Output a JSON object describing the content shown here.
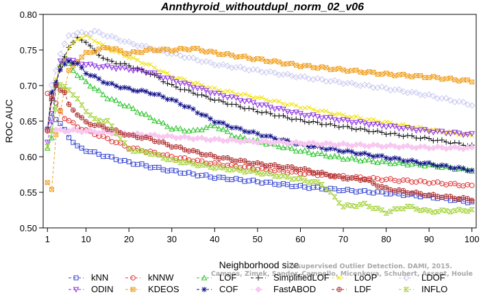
{
  "chart_data": {
    "type": "line",
    "title": "Annthyroid_withoutdupl_norm_02_v06",
    "xlabel": "Neighborhood size",
    "ylabel": "ROC AUC",
    "xlim": [
      0,
      101
    ],
    "ylim": [
      0.5,
      0.8
    ],
    "xticks": [
      1,
      10,
      20,
      30,
      40,
      50,
      60,
      70,
      80,
      90,
      100
    ],
    "yticks": [
      "0.50",
      "0.55",
      "0.60",
      "0.65",
      "0.70",
      "0.75",
      "0.80"
    ],
    "grid": false,
    "legend_position": "bottom",
    "watermark": [
      "Unsupervised Outlier Detection. DAMI, 2015.",
      "Campos, Zimek, Sander, Campello, Micenkova, Schubert, Assent, Houle"
    ],
    "series": [
      {
        "name": "kNN",
        "color": "#2f3fd0",
        "marker": "square",
        "knots": [
          [
            1,
            0.637
          ],
          [
            2,
            0.661
          ],
          [
            4,
            0.646
          ],
          [
            6,
            0.628
          ],
          [
            8,
            0.614
          ],
          [
            10,
            0.609
          ],
          [
            15,
            0.6
          ],
          [
            20,
            0.592
          ],
          [
            30,
            0.58
          ],
          [
            40,
            0.571
          ],
          [
            50,
            0.565
          ],
          [
            60,
            0.558
          ],
          [
            70,
            0.553
          ],
          [
            80,
            0.549
          ],
          [
            90,
            0.544
          ],
          [
            100,
            0.536
          ]
        ]
      },
      {
        "name": "kNNW",
        "color": "#e03030",
        "marker": "circle",
        "knots": [
          [
            1,
            0.69
          ],
          [
            2,
            0.686
          ],
          [
            3,
            0.674
          ],
          [
            5,
            0.655
          ],
          [
            8,
            0.642
          ],
          [
            10,
            0.637
          ],
          [
            15,
            0.625
          ],
          [
            20,
            0.613
          ],
          [
            30,
            0.6
          ],
          [
            40,
            0.59
          ],
          [
            50,
            0.583
          ],
          [
            60,
            0.577
          ],
          [
            70,
            0.572
          ],
          [
            80,
            0.568
          ],
          [
            90,
            0.564
          ],
          [
            100,
            0.559
          ]
        ]
      },
      {
        "name": "LOF",
        "color": "#28c428",
        "marker": "triangle-up",
        "knots": [
          [
            1,
            0.612
          ],
          [
            2,
            0.625
          ],
          [
            3,
            0.7
          ],
          [
            4,
            0.73
          ],
          [
            5,
            0.738
          ],
          [
            6,
            0.73
          ],
          [
            8,
            0.715
          ],
          [
            10,
            0.705
          ],
          [
            15,
            0.683
          ],
          [
            20,
            0.67
          ],
          [
            25,
            0.655
          ],
          [
            30,
            0.64
          ],
          [
            35,
            0.636
          ],
          [
            40,
            0.644
          ],
          [
            45,
            0.628
          ],
          [
            50,
            0.622
          ],
          [
            60,
            0.608
          ],
          [
            70,
            0.598
          ],
          [
            80,
            0.592
          ],
          [
            90,
            0.588
          ],
          [
            100,
            0.581
          ]
        ]
      },
      {
        "name": "SimplifiedLOF",
        "color": "#111111",
        "marker": "plus",
        "knots": [
          [
            1,
            0.638
          ],
          [
            2,
            0.68
          ],
          [
            4,
            0.725
          ],
          [
            6,
            0.755
          ],
          [
            8,
            0.766
          ],
          [
            10,
            0.762
          ],
          [
            12,
            0.748
          ],
          [
            15,
            0.735
          ],
          [
            20,
            0.728
          ],
          [
            25,
            0.717
          ],
          [
            30,
            0.7
          ],
          [
            40,
            0.68
          ],
          [
            50,
            0.664
          ],
          [
            60,
            0.651
          ],
          [
            70,
            0.642
          ],
          [
            80,
            0.633
          ],
          [
            90,
            0.625
          ],
          [
            100,
            0.615
          ]
        ]
      },
      {
        "name": "LoOP",
        "color": "#f0e000",
        "marker": "x",
        "knots": [
          [
            1,
            0.638
          ],
          [
            2,
            0.69
          ],
          [
            4,
            0.725
          ],
          [
            6,
            0.752
          ],
          [
            8,
            0.766
          ],
          [
            10,
            0.769
          ],
          [
            12,
            0.764
          ],
          [
            15,
            0.752
          ],
          [
            20,
            0.74
          ],
          [
            25,
            0.728
          ],
          [
            30,
            0.713
          ],
          [
            40,
            0.695
          ],
          [
            50,
            0.683
          ],
          [
            60,
            0.67
          ],
          [
            70,
            0.658
          ],
          [
            80,
            0.648
          ],
          [
            90,
            0.638
          ],
          [
            100,
            0.63
          ]
        ]
      },
      {
        "name": "LDOF",
        "color": "#c8c8f0",
        "marker": "diamond",
        "knots": [
          [
            1,
            0.64
          ],
          [
            2,
            0.7
          ],
          [
            4,
            0.745
          ],
          [
            6,
            0.77
          ],
          [
            8,
            0.774
          ],
          [
            10,
            0.773
          ],
          [
            12,
            0.776
          ],
          [
            15,
            0.77
          ],
          [
            20,
            0.76
          ],
          [
            30,
            0.745
          ],
          [
            40,
            0.73
          ],
          [
            50,
            0.721
          ],
          [
            60,
            0.712
          ],
          [
            70,
            0.704
          ],
          [
            80,
            0.696
          ],
          [
            90,
            0.686
          ],
          [
            100,
            0.673
          ]
        ]
      },
      {
        "name": "ODIN",
        "color": "#8a2be2",
        "marker": "triangle-down",
        "knots": [
          [
            1,
            0.62
          ],
          [
            2,
            0.65
          ],
          [
            3,
            0.7
          ],
          [
            4,
            0.733
          ],
          [
            6,
            0.737
          ],
          [
            8,
            0.732
          ],
          [
            10,
            0.73
          ],
          [
            12,
            0.727
          ],
          [
            15,
            0.726
          ],
          [
            20,
            0.723
          ],
          [
            25,
            0.718
          ],
          [
            30,
            0.708
          ],
          [
            40,
            0.689
          ],
          [
            50,
            0.674
          ],
          [
            60,
            0.66
          ],
          [
            70,
            0.651
          ],
          [
            80,
            0.643
          ],
          [
            90,
            0.636
          ],
          [
            100,
            0.631
          ]
        ]
      },
      {
        "name": "KDEOS",
        "color": "#f0a020",
        "marker": "square-x",
        "knots": [
          [
            1,
            0.565
          ],
          [
            2,
            0.553
          ],
          [
            3,
            0.63
          ],
          [
            4,
            0.665
          ],
          [
            5,
            0.695
          ],
          [
            6,
            0.72
          ],
          [
            8,
            0.735
          ],
          [
            10,
            0.745
          ],
          [
            15,
            0.754
          ],
          [
            20,
            0.745
          ],
          [
            25,
            0.75
          ],
          [
            30,
            0.75
          ],
          [
            35,
            0.752
          ],
          [
            40,
            0.746
          ],
          [
            50,
            0.737
          ],
          [
            60,
            0.728
          ],
          [
            70,
            0.722
          ],
          [
            80,
            0.716
          ],
          [
            90,
            0.712
          ],
          [
            100,
            0.706
          ]
        ]
      },
      {
        "name": "COF",
        "color": "#10108a",
        "marker": "asterisk",
        "knots": [
          [
            1,
            0.637
          ],
          [
            2,
            0.69
          ],
          [
            4,
            0.722
          ],
          [
            6,
            0.735
          ],
          [
            8,
            0.73
          ],
          [
            10,
            0.718
          ],
          [
            15,
            0.703
          ],
          [
            20,
            0.695
          ],
          [
            25,
            0.69
          ],
          [
            30,
            0.68
          ],
          [
            35,
            0.666
          ],
          [
            40,
            0.65
          ],
          [
            45,
            0.64
          ],
          [
            50,
            0.632
          ],
          [
            60,
            0.617
          ],
          [
            70,
            0.608
          ],
          [
            80,
            0.599
          ],
          [
            90,
            0.59
          ],
          [
            100,
            0.581
          ]
        ]
      },
      {
        "name": "FastABOD",
        "color": "#f8c8f0",
        "marker": "diamond-filled",
        "knots": [
          [
            1,
            0.637
          ],
          [
            5,
            0.637
          ],
          [
            10,
            0.636
          ],
          [
            15,
            0.634
          ],
          [
            20,
            0.632
          ],
          [
            30,
            0.628
          ],
          [
            40,
            0.624
          ],
          [
            50,
            0.621
          ],
          [
            60,
            0.619
          ],
          [
            70,
            0.617
          ],
          [
            80,
            0.615
          ],
          [
            90,
            0.613
          ],
          [
            100,
            0.612
          ]
        ]
      },
      {
        "name": "LDF",
        "color": "#b03030",
        "marker": "circle-plus",
        "knots": [
          [
            1,
            0.637
          ],
          [
            2,
            0.68
          ],
          [
            3,
            0.7
          ],
          [
            4,
            0.695
          ],
          [
            5,
            0.69
          ],
          [
            6,
            0.672
          ],
          [
            8,
            0.66
          ],
          [
            10,
            0.648
          ],
          [
            15,
            0.64
          ],
          [
            20,
            0.63
          ],
          [
            25,
            0.625
          ],
          [
            30,
            0.615
          ],
          [
            40,
            0.6
          ],
          [
            50,
            0.59
          ],
          [
            60,
            0.583
          ],
          [
            70,
            0.57
          ],
          [
            75,
            0.568
          ],
          [
            80,
            0.555
          ],
          [
            90,
            0.546
          ],
          [
            100,
            0.54
          ]
        ]
      },
      {
        "name": "INFLO",
        "color": "#a0d030",
        "marker": "hourglass",
        "knots": [
          [
            1,
            0.613
          ],
          [
            2,
            0.637
          ],
          [
            4,
            0.7
          ],
          [
            6,
            0.695
          ],
          [
            8,
            0.68
          ],
          [
            10,
            0.665
          ],
          [
            12,
            0.652
          ],
          [
            15,
            0.65
          ],
          [
            20,
            0.61
          ],
          [
            25,
            0.605
          ],
          [
            30,
            0.595
          ],
          [
            40,
            0.585
          ],
          [
            50,
            0.578
          ],
          [
            60,
            0.568
          ],
          [
            65,
            0.562
          ],
          [
            70,
            0.53
          ],
          [
            75,
            0.533
          ],
          [
            80,
            0.522
          ],
          [
            85,
            0.53
          ],
          [
            90,
            0.523
          ],
          [
            100,
            0.525
          ]
        ]
      }
    ]
  }
}
